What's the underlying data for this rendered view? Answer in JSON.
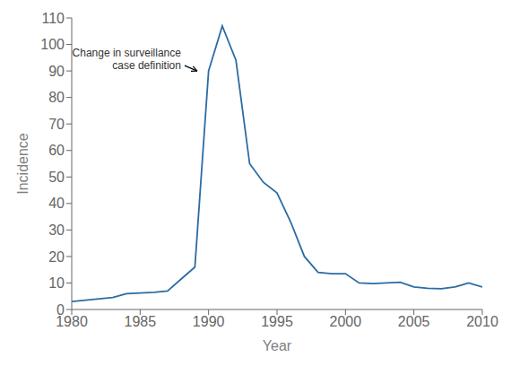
{
  "chart_data": {
    "type": "line",
    "x": [
      1980,
      1981,
      1982,
      1983,
      1984,
      1985,
      1986,
      1987,
      1988,
      1989,
      1990,
      1991,
      1992,
      1993,
      1994,
      1995,
      1996,
      1997,
      1998,
      1999,
      2000,
      2001,
      2002,
      2003,
      2004,
      2005,
      2006,
      2007,
      2008,
      2009,
      2010
    ],
    "values": [
      3.0,
      3.5,
      4.0,
      4.5,
      6.0,
      6.2,
      6.5,
      7.0,
      11.5,
      16.0,
      90.0,
      107.0,
      94.0,
      55.0,
      48.0,
      44.0,
      33.0,
      20.0,
      14.0,
      13.5,
      13.5,
      10.0,
      9.8,
      10.0,
      10.3,
      8.5,
      8.0,
      7.8,
      8.5,
      10.0,
      8.5
    ],
    "color": "#2b6ca3",
    "xlabel": "Year",
    "ylabel": "Incidence",
    "xlim": [
      1980,
      2010
    ],
    "ylim": [
      0,
      110
    ],
    "xticks": [
      1980,
      1985,
      1990,
      1995,
      2000,
      2005,
      2010
    ],
    "yticks": [
      0,
      10,
      20,
      30,
      40,
      50,
      60,
      70,
      80,
      90,
      100,
      110
    ],
    "annotations": [
      {
        "text": "Change in surveillance\ncase definition",
        "x": 1989.3,
        "y": 90
      }
    ],
    "grid": false
  }
}
